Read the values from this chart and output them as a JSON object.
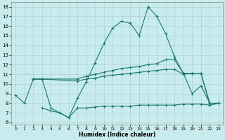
{
  "xlabel": "Humidex (Indice chaleur)",
  "background_color": "#c8eced",
  "grid_color": "#aad4d4",
  "line_color": "#1a7a6a",
  "xlim": [
    -0.5,
    23.5
  ],
  "ylim": [
    5.8,
    18.5
  ],
  "xticks": [
    0,
    1,
    2,
    3,
    4,
    5,
    6,
    7,
    8,
    9,
    10,
    11,
    12,
    13,
    14,
    15,
    16,
    17,
    18,
    19,
    20,
    21,
    22,
    23
  ],
  "yticks": [
    6,
    7,
    8,
    9,
    10,
    11,
    12,
    13,
    14,
    15,
    16,
    17,
    18
  ],
  "line1_x": [
    0,
    1,
    2,
    3,
    4,
    5,
    6,
    7,
    8,
    9,
    10,
    11,
    12,
    13,
    14,
    15,
    16,
    17,
    18,
    19,
    20,
    21,
    22
  ],
  "line1_y": [
    8.8,
    8.0,
    10.5,
    10.5,
    7.5,
    7.0,
    6.5,
    8.5,
    10.2,
    12.2,
    14.2,
    15.8,
    16.5,
    16.3,
    15.0,
    18.0,
    17.0,
    15.2,
    12.8,
    11.1,
    9.0,
    9.8,
    8.0
  ],
  "line2_x": [
    2,
    3,
    7,
    8,
    9,
    10,
    11,
    12,
    13,
    14,
    15,
    16,
    17,
    18,
    19,
    20,
    21,
    22,
    23
  ],
  "line2_y": [
    10.5,
    10.5,
    10.5,
    10.8,
    11.0,
    11.2,
    11.4,
    11.6,
    11.7,
    11.8,
    12.0,
    12.1,
    12.5,
    12.5,
    11.1,
    11.1,
    11.1,
    8.0,
    8.0
  ],
  "line3_x": [
    2,
    3,
    7,
    8,
    9,
    10,
    11,
    12,
    13,
    14,
    15,
    16,
    17,
    18,
    19,
    20,
    21,
    22,
    23
  ],
  "line3_y": [
    10.5,
    10.5,
    10.3,
    10.5,
    10.6,
    10.8,
    10.9,
    11.0,
    11.1,
    11.2,
    11.3,
    11.4,
    11.5,
    11.5,
    11.0,
    11.1,
    11.1,
    7.8,
    8.0
  ],
  "line4_x": [
    3,
    4,
    5,
    6,
    7,
    8,
    9,
    10,
    11,
    12,
    13,
    14,
    15,
    16,
    17,
    18,
    19,
    20,
    21,
    22,
    23
  ],
  "line4_y": [
    7.5,
    7.2,
    7.0,
    6.5,
    7.5,
    7.5,
    7.6,
    7.7,
    7.7,
    7.7,
    7.7,
    7.8,
    7.8,
    7.8,
    7.8,
    7.8,
    7.9,
    7.9,
    7.9,
    7.8,
    8.0
  ]
}
